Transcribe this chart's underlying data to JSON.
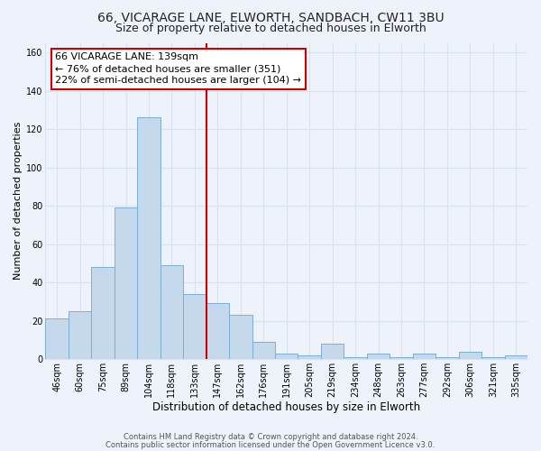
{
  "title1": "66, VICARAGE LANE, ELWORTH, SANDBACH, CW11 3BU",
  "title2": "Size of property relative to detached houses in Elworth",
  "xlabel": "Distribution of detached houses by size in Elworth",
  "ylabel": "Number of detached properties",
  "categories": [
    "46sqm",
    "60sqm",
    "75sqm",
    "89sqm",
    "104sqm",
    "118sqm",
    "133sqm",
    "147sqm",
    "162sqm",
    "176sqm",
    "191sqm",
    "205sqm",
    "219sqm",
    "234sqm",
    "248sqm",
    "263sqm",
    "277sqm",
    "292sqm",
    "306sqm",
    "321sqm",
    "335sqm"
  ],
  "values": [
    21,
    25,
    48,
    79,
    126,
    49,
    34,
    29,
    23,
    9,
    3,
    2,
    8,
    1,
    3,
    1,
    3,
    1,
    4,
    1,
    2
  ],
  "bar_color": "#c6d9ec",
  "bar_edge_color": "#7aafd4",
  "vline_x_index": 6.5,
  "vline_color": "#cc0000",
  "annotation_text": "66 VICARAGE LANE: 139sqm\n← 76% of detached houses are smaller (351)\n22% of semi-detached houses are larger (104) →",
  "annotation_box_color": "#ffffff",
  "annotation_box_edge_color": "#cc0000",
  "ylim": [
    0,
    165
  ],
  "yticks": [
    0,
    20,
    40,
    60,
    80,
    100,
    120,
    140,
    160
  ],
  "footer1": "Contains HM Land Registry data © Crown copyright and database right 2024.",
  "footer2": "Contains public sector information licensed under the Open Government Licence v3.0.",
  "background_color": "#eef2fa",
  "grid_color": "#d8e2f0",
  "title1_fontsize": 10,
  "title2_fontsize": 9,
  "xlabel_fontsize": 8.5,
  "ylabel_fontsize": 8,
  "tick_fontsize": 7,
  "annotation_fontsize": 8,
  "footer_fontsize": 6
}
